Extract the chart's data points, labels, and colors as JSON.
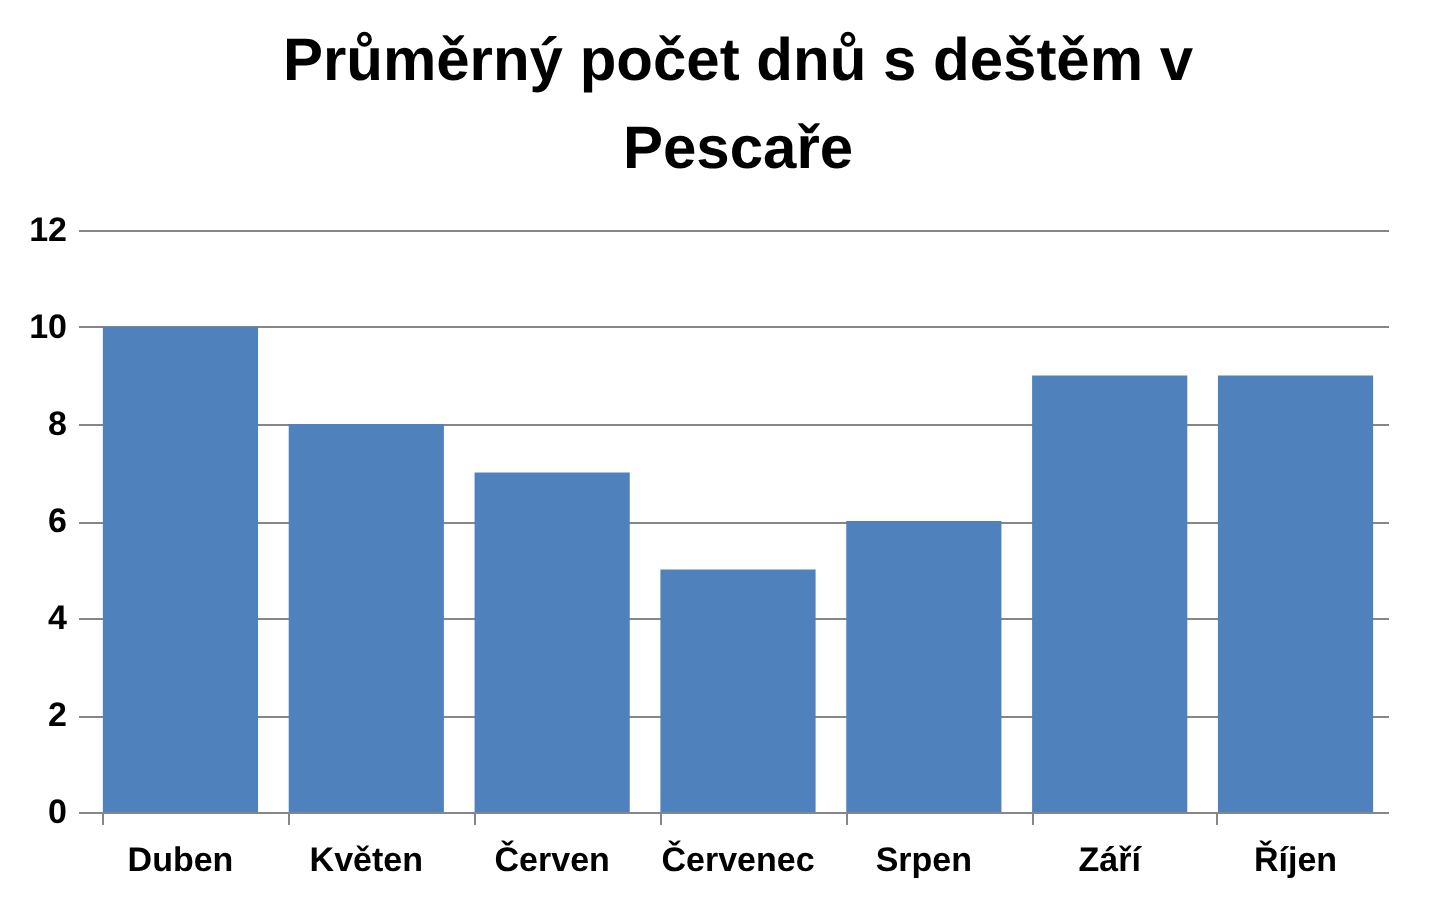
{
  "chart_data": {
    "type": "bar",
    "title": "Průměrný počet dnů s deštěm v Pescaře",
    "categories": [
      "Duben",
      "Květen",
      "Červen",
      "Červenec",
      "Srpen",
      "Září",
      "Říjen"
    ],
    "values": [
      10,
      8,
      7,
      5,
      6,
      9,
      9
    ],
    "color": "#4f81bd",
    "ylim": [
      0,
      12
    ],
    "yticks": [
      0,
      2,
      4,
      6,
      8,
      10,
      12
    ],
    "grid": "y"
  }
}
